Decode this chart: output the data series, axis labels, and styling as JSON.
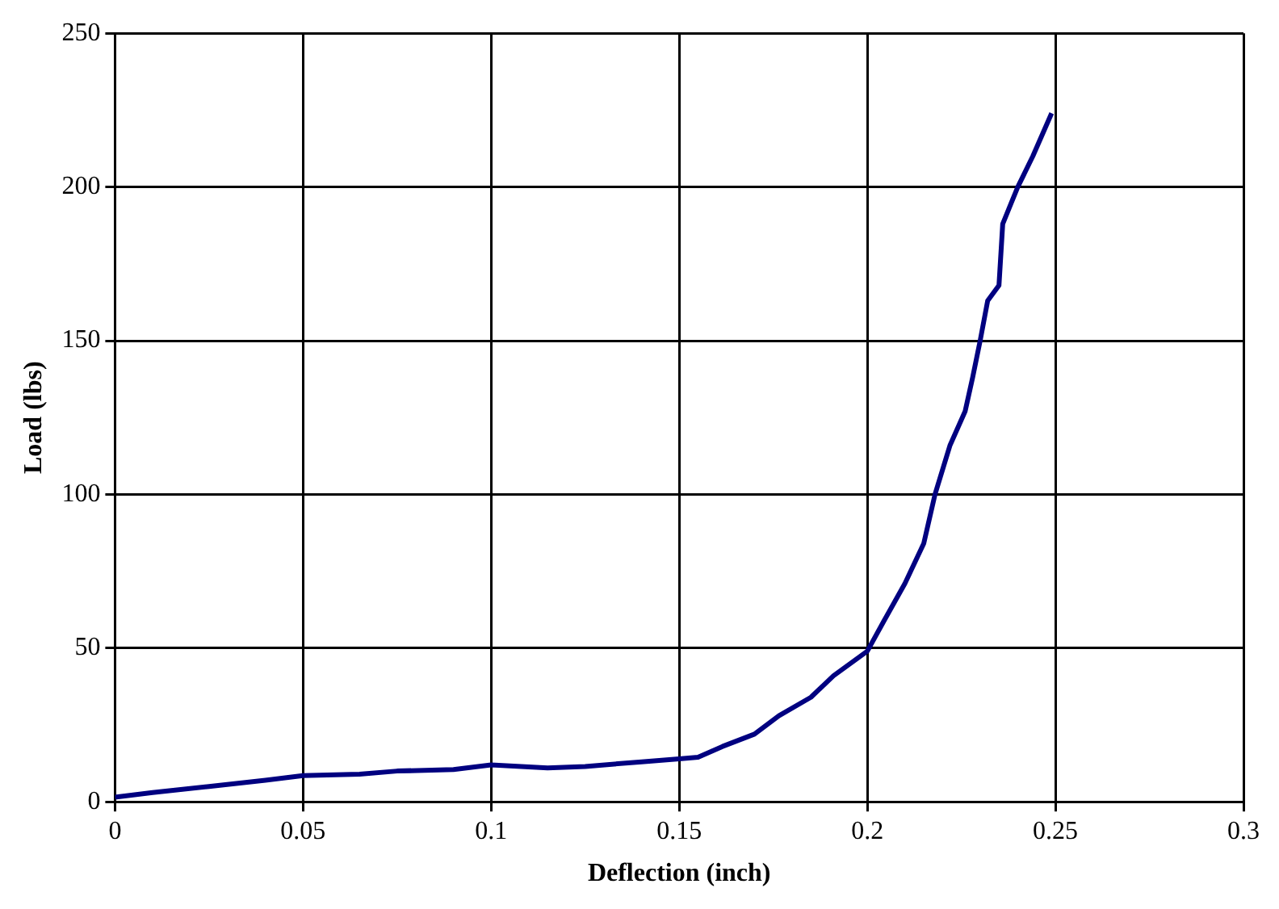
{
  "chart_data": {
    "type": "line",
    "xlabel": "Deflection (inch)",
    "ylabel": "Load (lbs)",
    "series": [
      {
        "color": "#000080",
        "x": [
          0,
          0.01,
          0.025,
          0.04,
          0.05,
          0.065,
          0.075,
          0.09,
          0.1,
          0.115,
          0.125,
          0.14,
          0.15,
          0.155,
          0.1615,
          0.17,
          0.1765,
          0.185,
          0.191,
          0.2,
          0.2045,
          0.21,
          0.215,
          0.218,
          0.222,
          0.226,
          0.228,
          0.23,
          0.232,
          0.235,
          0.236,
          0.24,
          0.244,
          0.249
        ],
        "values": [
          1.5,
          3,
          5,
          7,
          8.5,
          9,
          10,
          10.5,
          12,
          11,
          11.5,
          13,
          14,
          14.5,
          18,
          22,
          28,
          34,
          41,
          49,
          59,
          71,
          84,
          100,
          116,
          127,
          138,
          150,
          163,
          168,
          188,
          200,
          210,
          224
        ]
      }
    ],
    "xlim": [
      0,
      0.3
    ],
    "xticks": [
      0,
      0.05,
      0.1,
      0.15,
      0.2,
      0.25,
      0.3
    ],
    "ylim": [
      0,
      250
    ],
    "yticks": [
      0,
      50,
      100,
      150,
      200,
      250
    ],
    "grid": true,
    "legend": false,
    "marker": "none",
    "line_style": "solid"
  }
}
